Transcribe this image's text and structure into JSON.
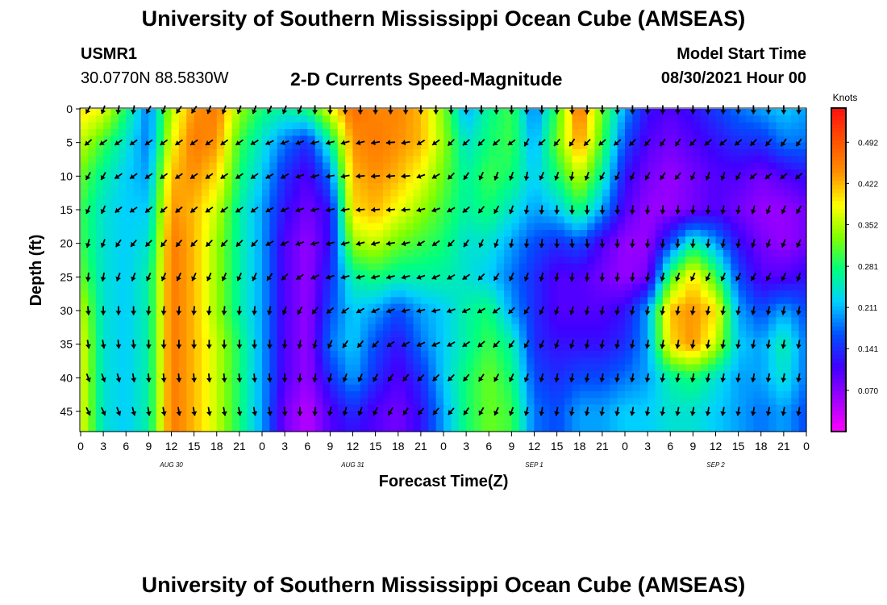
{
  "header": {
    "title_top": "University of Southern Mississippi Ocean Cube (AMSEAS)",
    "title_bottom": "University of Southern Mississippi Ocean Cube (AMSEAS)",
    "station_id": "USMR1",
    "station_coords": "30.0770N  88.5830W",
    "chart_title": "2-D Currents Speed-Magnitude",
    "model_start_label": "Model Start Time",
    "model_start_value": "08/30/2021 Hour 00"
  },
  "chart_data": {
    "type": "heatmap",
    "title": "2-D Currents Speed-Magnitude",
    "xlabel": "Forecast Time(Z)",
    "ylabel": "Depth (ft)",
    "x_ticks": [
      "0",
      "3",
      "6",
      "9",
      "12",
      "15",
      "18",
      "21",
      "0",
      "3",
      "6",
      "9",
      "12",
      "15",
      "18",
      "21",
      "0",
      "3",
      "6",
      "9",
      "12",
      "15",
      "18",
      "21",
      "0",
      "3",
      "6",
      "9",
      "12",
      "15",
      "18",
      "21",
      "0"
    ],
    "x_range_hours": [
      0,
      96
    ],
    "date_labels": [
      {
        "label": "AUG 30",
        "hour": 12
      },
      {
        "label": "AUG 31",
        "hour": 36
      },
      {
        "label": "SEP 1",
        "hour": 60
      },
      {
        "label": "SEP 2",
        "hour": 84
      }
    ],
    "y_ticks": [
      0,
      5,
      10,
      15,
      20,
      25,
      30,
      35,
      40,
      45
    ],
    "y_range_ft": [
      0,
      48
    ],
    "colorbar": {
      "label": "Knots",
      "ticks": [
        "0.492",
        "0.422",
        "0.352",
        "0.281",
        "0.211",
        "0.141",
        "0.070"
      ],
      "range": [
        0.0,
        0.55
      ],
      "colors": [
        "#ff00ff",
        "#a000ff",
        "#4000ff",
        "#0050ff",
        "#00d0ff",
        "#00ff80",
        "#80ff00",
        "#ffff00",
        "#ff9000",
        "#ff5000",
        "#ff1010"
      ]
    },
    "speed_field": {
      "hours": [
        0,
        3,
        6,
        9,
        12,
        15,
        18,
        21,
        24,
        27,
        30,
        33,
        36,
        39,
        42,
        45,
        48,
        51,
        54,
        57,
        60,
        63,
        66,
        69,
        72,
        75,
        78,
        81,
        84,
        87,
        90,
        93,
        96
      ],
      "depths_ft": [
        0,
        5,
        10,
        15,
        20,
        25,
        30,
        35,
        40,
        45,
        48
      ],
      "values": [
        [
          0.4,
          0.38,
          0.28,
          0.18,
          0.35,
          0.44,
          0.46,
          0.34,
          0.28,
          0.26,
          0.28,
          0.38,
          0.47,
          0.45,
          0.45,
          0.42,
          0.33,
          0.2,
          0.27,
          0.3,
          0.18,
          0.3,
          0.47,
          0.32,
          0.2,
          0.12,
          0.1,
          0.12,
          0.15,
          0.18,
          0.2,
          0.22,
          0.2
        ],
        [
          0.36,
          0.3,
          0.24,
          0.18,
          0.38,
          0.46,
          0.44,
          0.3,
          0.24,
          0.18,
          0.14,
          0.26,
          0.44,
          0.46,
          0.44,
          0.42,
          0.34,
          0.24,
          0.28,
          0.3,
          0.2,
          0.32,
          0.44,
          0.3,
          0.16,
          0.1,
          0.08,
          0.1,
          0.12,
          0.14,
          0.14,
          0.18,
          0.18
        ],
        [
          0.32,
          0.26,
          0.22,
          0.2,
          0.42,
          0.44,
          0.4,
          0.28,
          0.22,
          0.14,
          0.1,
          0.18,
          0.42,
          0.44,
          0.42,
          0.38,
          0.32,
          0.26,
          0.3,
          0.28,
          0.22,
          0.28,
          0.36,
          0.26,
          0.12,
          0.08,
          0.06,
          0.08,
          0.1,
          0.1,
          0.08,
          0.1,
          0.12
        ],
        [
          0.3,
          0.24,
          0.22,
          0.22,
          0.44,
          0.42,
          0.36,
          0.26,
          0.2,
          0.12,
          0.08,
          0.12,
          0.4,
          0.42,
          0.38,
          0.34,
          0.3,
          0.26,
          0.28,
          0.24,
          0.2,
          0.22,
          0.28,
          0.2,
          0.1,
          0.06,
          0.06,
          0.08,
          0.1,
          0.08,
          0.06,
          0.06,
          0.08
        ],
        [
          0.3,
          0.24,
          0.22,
          0.24,
          0.46,
          0.42,
          0.34,
          0.26,
          0.2,
          0.1,
          0.06,
          0.12,
          0.34,
          0.36,
          0.32,
          0.3,
          0.28,
          0.24,
          0.24,
          0.2,
          0.16,
          0.14,
          0.16,
          0.1,
          0.06,
          0.06,
          0.16,
          0.26,
          0.2,
          0.12,
          0.08,
          0.06,
          0.08
        ],
        [
          0.32,
          0.24,
          0.22,
          0.26,
          0.46,
          0.42,
          0.34,
          0.26,
          0.2,
          0.1,
          0.06,
          0.14,
          0.26,
          0.28,
          0.26,
          0.26,
          0.26,
          0.24,
          0.22,
          0.18,
          0.14,
          0.1,
          0.1,
          0.08,
          0.06,
          0.08,
          0.3,
          0.4,
          0.3,
          0.16,
          0.1,
          0.1,
          0.12
        ],
        [
          0.36,
          0.24,
          0.22,
          0.26,
          0.46,
          0.42,
          0.34,
          0.26,
          0.2,
          0.1,
          0.06,
          0.16,
          0.22,
          0.2,
          0.16,
          0.2,
          0.22,
          0.26,
          0.28,
          0.2,
          0.14,
          0.1,
          0.1,
          0.1,
          0.12,
          0.2,
          0.42,
          0.44,
          0.4,
          0.2,
          0.16,
          0.2,
          0.16
        ],
        [
          0.38,
          0.24,
          0.22,
          0.26,
          0.46,
          0.42,
          0.36,
          0.28,
          0.2,
          0.1,
          0.06,
          0.18,
          0.22,
          0.16,
          0.12,
          0.18,
          0.22,
          0.26,
          0.3,
          0.26,
          0.14,
          0.12,
          0.12,
          0.12,
          0.14,
          0.2,
          0.4,
          0.44,
          0.36,
          0.22,
          0.2,
          0.26,
          0.18
        ],
        [
          0.38,
          0.24,
          0.22,
          0.26,
          0.46,
          0.42,
          0.36,
          0.28,
          0.2,
          0.1,
          0.06,
          0.14,
          0.2,
          0.14,
          0.1,
          0.14,
          0.22,
          0.28,
          0.32,
          0.28,
          0.16,
          0.14,
          0.16,
          0.16,
          0.18,
          0.2,
          0.26,
          0.28,
          0.24,
          0.2,
          0.2,
          0.24,
          0.18
        ],
        [
          0.38,
          0.24,
          0.22,
          0.26,
          0.46,
          0.42,
          0.36,
          0.28,
          0.2,
          0.08,
          0.04,
          0.1,
          0.14,
          0.1,
          0.08,
          0.12,
          0.2,
          0.28,
          0.32,
          0.3,
          0.18,
          0.16,
          0.2,
          0.2,
          0.22,
          0.22,
          0.24,
          0.24,
          0.22,
          0.2,
          0.18,
          0.2,
          0.16
        ],
        [
          0.38,
          0.24,
          0.22,
          0.26,
          0.46,
          0.42,
          0.36,
          0.28,
          0.2,
          0.08,
          0.04,
          0.1,
          0.12,
          0.1,
          0.08,
          0.12,
          0.2,
          0.28,
          0.32,
          0.3,
          0.18,
          0.16,
          0.2,
          0.2,
          0.22,
          0.22,
          0.24,
          0.24,
          0.22,
          0.2,
          0.18,
          0.2,
          0.16
        ]
      ]
    },
    "current_vectors": {
      "hours": [
        1,
        3,
        5,
        7,
        9,
        11,
        13,
        15,
        17,
        19,
        21,
        23,
        25,
        27,
        29,
        31,
        33,
        35,
        37,
        39,
        41,
        43,
        45,
        47,
        49,
        51,
        53,
        55,
        57,
        59,
        61,
        63,
        65,
        67,
        69,
        71,
        73,
        75,
        77,
        79,
        81,
        83,
        85,
        87,
        89,
        91,
        93,
        95
      ],
      "depths_ft": [
        0,
        5,
        10,
        15,
        20,
        25,
        30,
        35,
        40,
        45
      ],
      "directions_deg": [
        [
          210,
          200,
          190,
          190,
          210,
          200,
          215,
          215,
          200,
          200,
          200,
          200,
          205,
          200,
          200,
          180,
          180,
          180,
          180,
          180,
          180,
          180,
          180,
          180,
          180,
          180,
          180,
          180,
          180,
          180,
          180,
          180,
          180,
          180,
          180,
          180,
          180,
          180,
          180,
          180,
          180,
          180,
          180,
          180,
          180,
          180,
          180,
          180
        ],
        [
          230,
          235,
          235,
          235,
          235,
          235,
          235,
          235,
          235,
          235,
          235,
          240,
          245,
          250,
          250,
          255,
          255,
          255,
          255,
          260,
          265,
          260,
          240,
          235,
          225,
          230,
          225,
          230,
          235,
          210,
          230,
          220,
          215,
          225,
          230,
          230,
          225,
          220,
          215,
          215,
          225,
          230,
          230,
          230,
          225,
          220,
          215,
          215
        ],
        [
          210,
          210,
          235,
          235,
          235,
          235,
          235,
          235,
          235,
          235,
          235,
          235,
          240,
          240,
          250,
          255,
          260,
          260,
          265,
          265,
          265,
          265,
          250,
          240,
          225,
          215,
          205,
          200,
          200,
          190,
          205,
          200,
          190,
          200,
          210,
          205,
          205,
          210,
          215,
          220,
          205,
          200,
          200,
          210,
          230,
          230,
          230,
          230
        ],
        [
          205,
          205,
          230,
          235,
          230,
          230,
          230,
          230,
          235,
          235,
          235,
          235,
          240,
          245,
          250,
          255,
          260,
          260,
          265,
          265,
          265,
          265,
          255,
          250,
          240,
          230,
          220,
          210,
          200,
          190,
          185,
          180,
          180,
          180,
          180,
          180,
          185,
          185,
          185,
          185,
          185,
          185,
          190,
          190,
          195,
          200,
          200,
          210
        ],
        [
          195,
          200,
          215,
          220,
          225,
          220,
          220,
          225,
          225,
          225,
          225,
          225,
          240,
          245,
          250,
          255,
          255,
          255,
          255,
          255,
          260,
          255,
          240,
          235,
          225,
          215,
          205,
          200,
          190,
          185,
          185,
          180,
          175,
          175,
          175,
          180,
          185,
          185,
          185,
          185,
          185,
          185,
          190,
          190,
          195,
          200,
          200,
          205
        ],
        [
          185,
          190,
          200,
          200,
          205,
          205,
          205,
          205,
          205,
          205,
          205,
          205,
          215,
          225,
          235,
          245,
          250,
          255,
          255,
          255,
          255,
          255,
          250,
          245,
          240,
          235,
          225,
          215,
          205,
          200,
          195,
          190,
          185,
          185,
          185,
          185,
          185,
          190,
          195,
          200,
          205,
          205,
          205,
          210,
          210,
          210,
          205,
          200
        ],
        [
          175,
          180,
          180,
          180,
          185,
          185,
          185,
          185,
          185,
          185,
          185,
          185,
          190,
          200,
          210,
          220,
          230,
          235,
          240,
          245,
          250,
          255,
          255,
          255,
          250,
          245,
          240,
          235,
          225,
          215,
          205,
          200,
          195,
          190,
          190,
          190,
          190,
          190,
          190,
          190,
          190,
          190,
          190,
          190,
          190,
          190,
          190,
          190
        ],
        [
          170,
          170,
          175,
          175,
          180,
          180,
          180,
          180,
          180,
          180,
          180,
          180,
          180,
          185,
          190,
          195,
          205,
          215,
          220,
          225,
          235,
          240,
          245,
          245,
          240,
          235,
          230,
          225,
          215,
          210,
          205,
          200,
          195,
          190,
          190,
          190,
          190,
          190,
          190,
          190,
          190,
          190,
          190,
          190,
          190,
          190,
          190,
          190
        ],
        [
          160,
          160,
          165,
          170,
          175,
          175,
          175,
          175,
          175,
          175,
          175,
          175,
          175,
          180,
          185,
          190,
          195,
          200,
          205,
          210,
          215,
          220,
          225,
          225,
          225,
          220,
          215,
          210,
          205,
          200,
          195,
          190,
          190,
          190,
          190,
          190,
          190,
          190,
          190,
          190,
          190,
          190,
          190,
          190,
          190,
          190,
          190,
          190
        ],
        [
          155,
          155,
          160,
          165,
          170,
          170,
          170,
          170,
          170,
          170,
          170,
          170,
          170,
          175,
          180,
          185,
          190,
          195,
          200,
          205,
          210,
          215,
          220,
          220,
          220,
          215,
          210,
          205,
          200,
          195,
          190,
          190,
          190,
          190,
          190,
          190,
          190,
          190,
          190,
          190,
          190,
          190,
          190,
          190,
          190,
          190,
          190,
          190
        ]
      ]
    }
  }
}
